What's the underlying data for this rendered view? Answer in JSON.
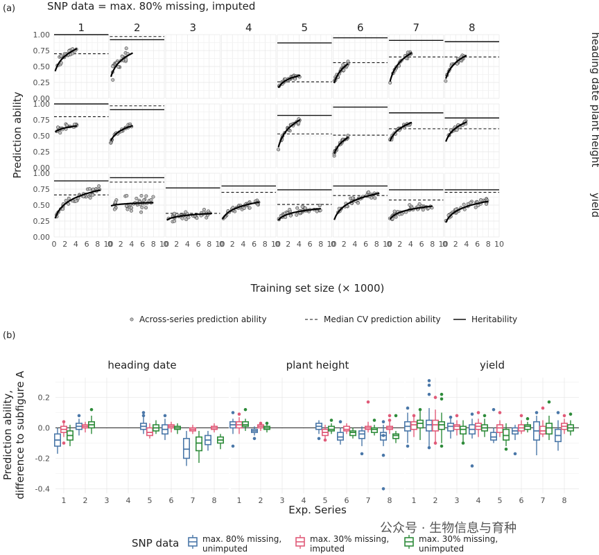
{
  "figure": {
    "panel_a_label": "(a)",
    "panel_b_label": "(b)",
    "watermark": "公众号 · 生物信息与育种"
  },
  "chart_data": [
    {
      "type": "scatter",
      "title": "SNP data = max. 80% missing, imputed",
      "xlabel": "Training set size (× 1000)",
      "ylabel": "Prediction ability",
      "xlim": [
        0,
        10
      ],
      "ylim": [
        0,
        1
      ],
      "x_ticks": [
        "0",
        "2",
        "4",
        "6",
        "8",
        "10"
      ],
      "y_ticks": [
        "0.00",
        "0.25",
        "0.50",
        "0.75",
        "1.00"
      ],
      "columns": [
        "1",
        "2",
        "3",
        "4",
        "5",
        "6",
        "7",
        "8"
      ],
      "rows": [
        "heading date",
        "plant height",
        "yield"
      ],
      "legend": {
        "points": "Across-series prediction ability",
        "dashed": "Median CV prediction ability",
        "solid": "Heritability"
      },
      "panels": [
        [
          {
            "h": 1.0,
            "cv": 0.7,
            "xmax": 4.2,
            "a": 0.36,
            "b": 0.18,
            "sd": 0.07
          },
          {
            "h": 0.92,
            "cv": 0.97,
            "xmax": 4.2,
            "a": 0.27,
            "b": 0.19,
            "sd": 0.1
          },
          null,
          null,
          {
            "h": 0.87,
            "cv": 0.26,
            "xmax": 4.2,
            "a": 0.13,
            "b": 0.1,
            "sd": 0.03
          },
          {
            "h": 0.95,
            "cv": 0.56,
            "xmax": 2.8,
            "a": 0.17,
            "b": 0.19,
            "sd": 0.04
          },
          {
            "h": 0.91,
            "cv": 0.65,
            "xmax": 4.2,
            "a": 0.18,
            "b": 0.23,
            "sd": 0.04
          },
          {
            "h": 0.89,
            "cv": 0.65,
            "xmax": 4.0,
            "a": 0.24,
            "b": 0.19,
            "sd": 0.04
          }
        ],
        [
          {
            "h": 1.0,
            "cv": 0.8,
            "xmax": 4.2,
            "a": 0.54,
            "b": 0.05,
            "sd": 0.04
          },
          {
            "h": 0.91,
            "cv": 0.97,
            "xmax": 4.2,
            "a": 0.38,
            "b": 0.12,
            "sd": 0.05
          },
          null,
          null,
          {
            "h": 0.82,
            "cv": 0.53,
            "xmax": 4.2,
            "a": 0.24,
            "b": 0.22,
            "sd": 0.04
          },
          {
            "h": 0.95,
            "cv": 0.51,
            "xmax": 2.8,
            "a": 0.16,
            "b": 0.16,
            "sd": 0.03
          },
          {
            "h": 0.86,
            "cv": 0.61,
            "xmax": 4.2,
            "a": 0.36,
            "b": 0.15,
            "sd": 0.03
          },
          {
            "h": 0.78,
            "cv": 0.61,
            "xmax": 4.0,
            "a": 0.35,
            "b": 0.16,
            "sd": 0.03
          }
        ],
        [
          {
            "h": 0.88,
            "cv": 0.66,
            "xmax": 8.5,
            "a": 0.23,
            "b": 0.17,
            "sd": 0.06
          },
          {
            "h": 0.93,
            "cv": 0.86,
            "xmax": 8.0,
            "a": 0.48,
            "b": 0.02,
            "sd": 0.11
          },
          {
            "h": 0.77,
            "cv": 0.37,
            "xmax": 8.5,
            "a": 0.25,
            "b": 0.04,
            "sd": 0.05
          },
          {
            "h": 0.8,
            "cv": 0.7,
            "xmax": 7.0,
            "a": 0.24,
            "b": 0.11,
            "sd": 0.05
          },
          {
            "h": 0.74,
            "cv": 0.51,
            "xmax": 8.0,
            "a": 0.24,
            "b": 0.07,
            "sd": 0.05
          },
          {
            "h": 0.8,
            "cv": 0.65,
            "xmax": 8.5,
            "a": 0.21,
            "b": 0.16,
            "sd": 0.05
          },
          {
            "h": 0.74,
            "cv": 0.58,
            "xmax": 8.0,
            "a": 0.25,
            "b": 0.08,
            "sd": 0.05
          },
          {
            "h": 0.74,
            "cv": 0.7,
            "xmax": 8.0,
            "a": 0.18,
            "b": 0.13,
            "sd": 0.05
          }
        ]
      ]
    },
    {
      "type": "box",
      "xlabel": "Exp. Series",
      "ylabel": "Prediction ability,\ndifference to subfigure A",
      "ylim": [
        -0.43,
        0.33
      ],
      "y_ticks": [
        "0.2",
        "0.0",
        "-0.2",
        "-0.4"
      ],
      "y_tick_values": [
        0.2,
        0.0,
        -0.2,
        -0.4
      ],
      "categories": [
        "1",
        "2",
        "3",
        "4",
        "5",
        "6",
        "7",
        "8"
      ],
      "facets": [
        "heading date",
        "plant height",
        "yield"
      ],
      "legend_title": "SNP data",
      "series": [
        {
          "name": "max. 80% missing,\nunimputed",
          "color": "#4a77a8"
        },
        {
          "name": "max. 30% missing,\nimputed",
          "color": "#e05a78"
        },
        {
          "name": "max. 30% missing,\nunimputed",
          "color": "#2e8b3a"
        }
      ],
      "boxes": [
        [
          [
            [
              -0.17,
              -0.12,
              -0.08,
              -0.04,
              0.0
            ],
            [
              -0.06,
              -0.03,
              -0.01,
              0.01,
              0.03
            ],
            [
              -0.12,
              -0.08,
              -0.05,
              -0.02,
              0.02
            ]
          ],
          [
            [
              -0.05,
              -0.01,
              0.01,
              0.03,
              0.06
            ],
            [
              -0.03,
              0.0,
              0.01,
              0.02,
              0.04
            ],
            [
              -0.04,
              0.0,
              0.02,
              0.04,
              0.08
            ]
          ],
          null,
          null,
          [
            [
              -0.04,
              -0.01,
              0.01,
              0.03,
              0.07
            ],
            [
              -0.07,
              -0.05,
              -0.03,
              0.0,
              0.03
            ],
            [
              -0.04,
              -0.02,
              0.0,
              0.02,
              0.05
            ]
          ],
          [
            [
              -0.08,
              -0.04,
              -0.01,
              0.02,
              0.06
            ],
            [
              -0.03,
              0.0,
              0.01,
              0.02,
              0.04
            ],
            [
              -0.04,
              -0.01,
              0.0,
              0.01,
              0.03
            ]
          ],
          [
            [
              -0.25,
              -0.2,
              -0.14,
              -0.07,
              -0.02
            ],
            [
              -0.04,
              -0.02,
              -0.01,
              0.0,
              0.02
            ],
            [
              -0.23,
              -0.15,
              -0.1,
              -0.06,
              -0.02
            ]
          ],
          [
            [
              -0.15,
              -0.11,
              -0.08,
              -0.05,
              -0.02
            ],
            [
              -0.03,
              -0.01,
              0.0,
              0.01,
              0.03
            ],
            [
              -0.14,
              -0.1,
              -0.08,
              -0.06,
              -0.04
            ]
          ]
        ],
        [
          [
            [
              -0.04,
              0.0,
              0.02,
              0.04,
              0.06
            ],
            [
              -0.04,
              0.0,
              0.02,
              0.04,
              0.07
            ],
            [
              -0.02,
              0.01,
              0.02,
              0.04,
              0.06
            ]
          ],
          [
            [
              -0.05,
              -0.03,
              -0.02,
              -0.01,
              0.01
            ],
            [
              -0.02,
              0.0,
              0.01,
              0.02,
              0.03
            ],
            [
              -0.03,
              -0.01,
              0.0,
              0.01,
              0.02
            ]
          ],
          null,
          null,
          [
            [
              -0.04,
              -0.01,
              0.01,
              0.03,
              0.05
            ],
            [
              -0.07,
              -0.05,
              -0.03,
              -0.01,
              0.02
            ],
            [
              -0.04,
              -0.02,
              -0.01,
              0.01,
              0.03
            ]
          ],
          [
            [
              -0.11,
              -0.08,
              -0.06,
              -0.03,
              0.0
            ],
            [
              -0.04,
              -0.02,
              -0.01,
              0.01,
              0.03
            ],
            [
              -0.07,
              -0.05,
              -0.03,
              -0.02,
              0.0
            ]
          ],
          [
            [
              -0.12,
              -0.07,
              -0.04,
              -0.02,
              0.01
            ],
            [
              -0.03,
              -0.01,
              0.0,
              0.01,
              0.04
            ],
            [
              -0.05,
              -0.03,
              -0.01,
              0.0,
              0.02
            ]
          ],
          [
            [
              -0.12,
              -0.08,
              -0.05,
              -0.03,
              0.02
            ],
            [
              -0.04,
              -0.01,
              0.0,
              0.01,
              0.04
            ],
            [
              -0.1,
              -0.07,
              -0.05,
              -0.04,
              -0.02
            ]
          ]
        ],
        [
          [
            [
              -0.1,
              -0.02,
              0.01,
              0.04,
              0.1
            ],
            [
              -0.06,
              -0.01,
              0.02,
              0.04,
              0.09
            ],
            [
              -0.08,
              0.0,
              0.03,
              0.05,
              0.11
            ]
          ],
          [
            [
              -0.12,
              -0.02,
              0.02,
              0.05,
              0.13
            ],
            [
              -0.11,
              -0.02,
              0.02,
              0.05,
              0.12
            ],
            [
              -0.1,
              -0.01,
              0.02,
              0.04,
              0.1
            ]
          ],
          [
            [
              -0.07,
              -0.02,
              0.01,
              0.03,
              0.06
            ],
            [
              -0.05,
              -0.01,
              0.01,
              0.02,
              0.05
            ],
            [
              -0.09,
              -0.04,
              -0.01,
              0.01,
              0.05
            ]
          ],
          [
            [
              -0.07,
              -0.04,
              -0.01,
              0.02,
              0.06
            ],
            [
              -0.06,
              -0.01,
              0.01,
              0.03,
              0.06
            ],
            [
              -0.06,
              -0.02,
              0.0,
              0.02,
              0.06
            ]
          ],
          [
            [
              -0.1,
              -0.08,
              -0.06,
              -0.03,
              0.0
            ],
            [
              -0.06,
              -0.03,
              0.0,
              0.02,
              0.05
            ],
            [
              -0.12,
              -0.08,
              -0.05,
              -0.01,
              0.03
            ]
          ],
          [
            [
              -0.08,
              -0.04,
              -0.02,
              0.0,
              0.02
            ],
            [
              -0.04,
              -0.02,
              0.0,
              0.02,
              0.05
            ],
            [
              -0.03,
              -0.01,
              0.01,
              0.02,
              0.04
            ]
          ],
          [
            [
              -0.18,
              -0.08,
              -0.02,
              0.04,
              0.08
            ],
            [
              -0.06,
              -0.04,
              -0.02,
              0.01,
              0.05
            ],
            [
              -0.08,
              -0.04,
              0.0,
              0.03,
              0.08
            ]
          ],
          [
            [
              -0.15,
              -0.09,
              -0.05,
              -0.01,
              0.05
            ],
            [
              -0.04,
              -0.01,
              0.01,
              0.03,
              0.06
            ],
            [
              -0.05,
              -0.02,
              0.0,
              0.02,
              0.05
            ]
          ]
        ]
      ],
      "outliers": [
        [
          [
            [],
            [
              0.04,
              -0.1
            ],
            []
          ],
          [
            [
              0.08
            ],
            [],
            [
              0.12
            ]
          ],
          [],
          [],
          [
            [
              0.1,
              0.08
            ],
            [],
            []
          ],
          [
            [
              0.08
            ],
            [],
            []
          ],
          [
            [],
            [],
            []
          ],
          [
            [],
            [],
            []
          ]
        ],
        [
          [
            [
              -0.12,
              0.1
            ],
            [
              0.09
            ],
            [
              0.12
            ]
          ],
          [
            [
              -0.07
            ],
            [
              0.03
            ],
            [
              0.03
            ]
          ],
          [],
          [],
          [
            [
              -0.07
            ],
            [
              -0.08
            ],
            [
              0.05
            ]
          ],
          [
            [
              0.04
            ],
            [],
            []
          ],
          [
            [
              -0.17
            ],
            [
              0.17
            ],
            [
              0.05
            ]
          ],
          [
            [
              -0.4,
              -0.05,
              -0.18,
              0.04
            ],
            [
              0.08,
              0.05
            ],
            [
              0.08
            ]
          ]
        ],
        [
          [
            [
              0.13,
              -0.12
            ],
            [
              0.08
            ],
            [
              0.12
            ]
          ],
          [
            [
              0.31,
              0.28,
              0.22,
              -0.13
            ],
            [
              0.2,
              -0.1
            ],
            [
              0.22,
              0.19,
              -0.12
            ]
          ],
          [
            [
              0.07
            ],
            [
              0.08
            ],
            [
              -0.1
            ]
          ],
          [
            [
              -0.25,
              0.09
            ],
            [
              0.1
            ],
            [
              0.08
            ]
          ],
          [
            [
              0.12
            ],
            [
              0.1
            ],
            [
              -0.14
            ]
          ],
          [
            [
              -0.17
            ],
            [
              0.08
            ],
            [
              0.06
            ]
          ],
          [
            [
              0.1
            ],
            [
              0.13
            ],
            [
              0.17
            ]
          ],
          [
            [
              0.1
            ],
            [
              0.08
            ],
            [
              0.09
            ]
          ]
        ]
      ]
    }
  ]
}
